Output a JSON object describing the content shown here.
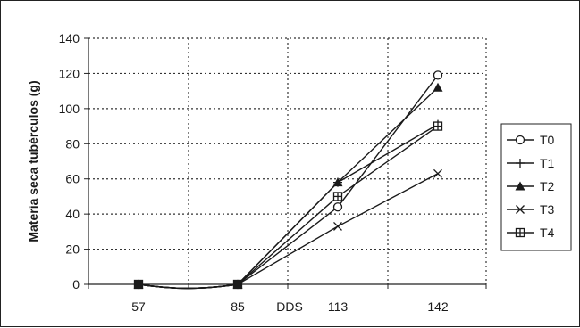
{
  "chart_data": {
    "type": "line",
    "title": "",
    "xlabel": "DDS",
    "ylabel": "Materia seca tubérculos (g)",
    "categories": [
      "57",
      "85",
      "113",
      "142"
    ],
    "ylim": [
      0,
      140
    ],
    "yticks": [
      "0",
      "20",
      "40",
      "60",
      "80",
      "100",
      "120",
      "140"
    ],
    "grid": true,
    "legend_position": "right",
    "series": [
      {
        "name": "T0",
        "marker": "circle",
        "values": [
          0,
          0,
          44,
          119
        ]
      },
      {
        "name": "T1",
        "marker": "plus",
        "values": [
          0,
          0,
          58,
          91
        ]
      },
      {
        "name": "T2",
        "marker": "triangle",
        "values": [
          0,
          0,
          58,
          112
        ]
      },
      {
        "name": "T3",
        "marker": "x",
        "values": [
          0,
          0,
          33,
          63
        ]
      },
      {
        "name": "T4",
        "marker": "square-plus",
        "values": [
          0,
          0,
          50,
          90
        ]
      }
    ]
  }
}
